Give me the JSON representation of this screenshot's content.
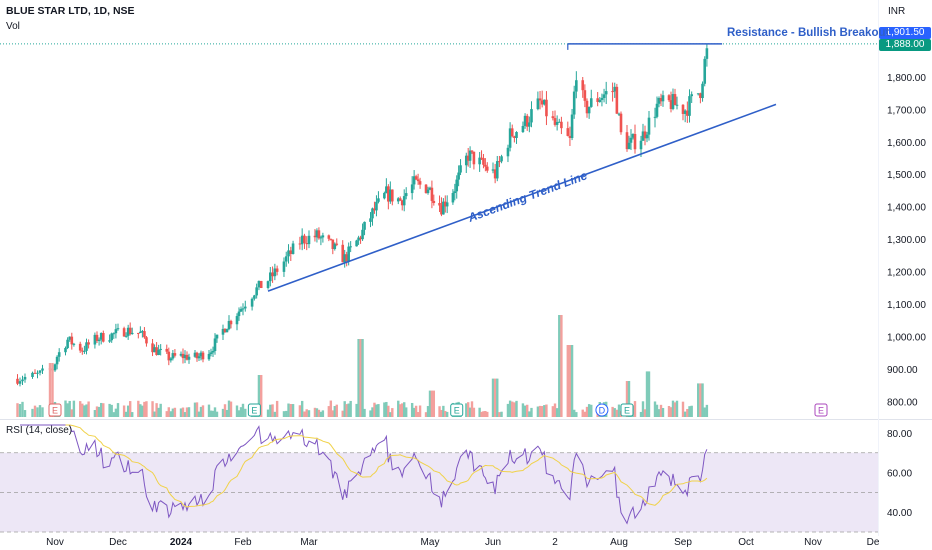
{
  "header": {
    "symbol_line": "BLUE STAR LTD, 1D, NSE",
    "volume_label": "Vol",
    "currency": "INR",
    "rsi_label": "RSI (14, close)"
  },
  "last_prices": {
    "high_tag": "1,901.50",
    "close_tag": "1,888.00"
  },
  "annotations": {
    "resistance": "Resistance - Bullish Breakout",
    "trend_line": "Ascending Trend Line"
  },
  "colors": {
    "up": "#26a69a",
    "down": "#ef5350",
    "up_vol": "#7fcbb9",
    "down_vol": "#f3a09d",
    "drawing": "#2f5fc8",
    "rsi_line": "#7e57c2",
    "rsi_ma": "#f0d24a",
    "rsi_band": "#ede7f6"
  },
  "chart_data": {
    "type": "candlestick",
    "y_axis_ticks": [
      "1,800.00",
      "1,700.00",
      "1,600.00",
      "1,500.00",
      "1,400.00",
      "1,300.00",
      "1,200.00",
      "1,100.00",
      "1,000.00",
      "900.00",
      "800.00"
    ],
    "y_axis_tick_values": [
      1800,
      1700,
      1600,
      1500,
      1400,
      1300,
      1200,
      1100,
      1000,
      900,
      800
    ],
    "ylim": [
      740,
      1935
    ],
    "x_axis_labels": [
      "Nov",
      "Dec",
      "2024",
      "Feb",
      "Mar",
      "May",
      "Jun",
      "2",
      "Aug",
      "Sep",
      "Oct",
      "Nov",
      "De"
    ],
    "last_high": 1901.5,
    "last_close": 1888.0,
    "price_anchors": [
      [
        "2023-10-17",
        870
      ],
      [
        "2023-10-24",
        880
      ],
      [
        "2023-10-31",
        900
      ],
      [
        "2023-11-02",
        940
      ],
      [
        "2023-11-07",
        990
      ],
      [
        "2023-11-14",
        960
      ],
      [
        "2023-11-21",
        995
      ],
      [
        "2023-11-28",
        1005
      ],
      [
        "2023-12-05",
        1020
      ],
      [
        "2023-12-12",
        1010
      ],
      [
        "2023-12-19",
        960
      ],
      [
        "2023-12-26",
        935
      ],
      [
        "2024-01-02",
        940
      ],
      [
        "2024-01-09",
        935
      ],
      [
        "2024-01-16",
        960
      ],
      [
        "2024-01-23",
        1030
      ],
      [
        "2024-01-30",
        1080
      ],
      [
        "2024-02-06",
        1140
      ],
      [
        "2024-02-13",
        1180
      ],
      [
        "2024-02-20",
        1240
      ],
      [
        "2024-02-27",
        1300
      ],
      [
        "2024-03-05",
        1310
      ],
      [
        "2024-03-12",
        1280
      ],
      [
        "2024-03-19",
        1240
      ],
      [
        "2024-03-26",
        1300
      ],
      [
        "2024-04-02",
        1380
      ],
      [
        "2024-04-09",
        1440
      ],
      [
        "2024-04-16",
        1420
      ],
      [
        "2024-04-23",
        1470
      ],
      [
        "2024-04-30",
        1460
      ],
      [
        "2024-05-07",
        1400
      ],
      [
        "2024-05-14",
        1460
      ],
      [
        "2024-05-21",
        1560
      ],
      [
        "2024-05-28",
        1530
      ],
      [
        "2024-06-04",
        1500
      ],
      [
        "2024-06-11",
        1620
      ],
      [
        "2024-06-18",
        1660
      ],
      [
        "2024-06-25",
        1720
      ],
      [
        "2024-07-02",
        1650
      ],
      [
        "2024-07-09",
        1600
      ],
      [
        "2024-07-12",
        1820
      ],
      [
        "2024-07-16",
        1700
      ],
      [
        "2024-07-23",
        1740
      ],
      [
        "2024-07-30",
        1760
      ],
      [
        "2024-08-02",
        1620
      ],
      [
        "2024-08-06",
        1590
      ],
      [
        "2024-08-13",
        1620
      ],
      [
        "2024-08-20",
        1710
      ],
      [
        "2024-08-27",
        1720
      ],
      [
        "2024-09-03",
        1700
      ],
      [
        "2024-09-10",
        1760
      ],
      [
        "2024-09-13",
        1888
      ]
    ],
    "volume_spikes": [
      [
        "2023-10-30",
        0.45
      ],
      [
        "2024-02-09",
        0.35
      ],
      [
        "2024-03-27",
        0.65
      ],
      [
        "2024-05-02",
        0.22
      ],
      [
        "2024-06-04",
        0.32
      ],
      [
        "2024-07-05",
        0.85
      ],
      [
        "2024-07-09",
        0.6
      ],
      [
        "2024-08-05",
        0.3
      ],
      [
        "2024-08-16",
        0.38
      ],
      [
        "2024-09-10",
        0.28
      ]
    ],
    "event_markers": [
      {
        "date": "2023-11-01",
        "label": "E",
        "color": "#e06666"
      },
      {
        "date": "2024-02-06",
        "label": "E",
        "color": "#26a69a"
      },
      {
        "date": "2024-05-15",
        "label": "E",
        "color": "#26a69a"
      },
      {
        "date": "2024-07-24",
        "label": "D",
        "color": "#2962ff"
      },
      {
        "date": "2024-08-05",
        "label": "E",
        "color": "#26a69a"
      },
      {
        "date": "2024-11-05",
        "label": "E",
        "color": "#ab47bc"
      }
    ],
    "rsi": {
      "ticks": [
        "80.00",
        "60.00",
        "40.00"
      ],
      "tick_values": [
        80,
        60,
        40
      ],
      "bands": [
        70,
        50,
        30
      ],
      "ylim": [
        28,
        86
      ]
    },
    "resistance_line": {
      "start": "2024-07-08",
      "end": "2024-09-20",
      "price": 1901.5
    },
    "trend_line": {
      "start": [
        "2024-02-01",
        1140
      ],
      "end": [
        "2024-10-01",
        1715
      ]
    }
  }
}
